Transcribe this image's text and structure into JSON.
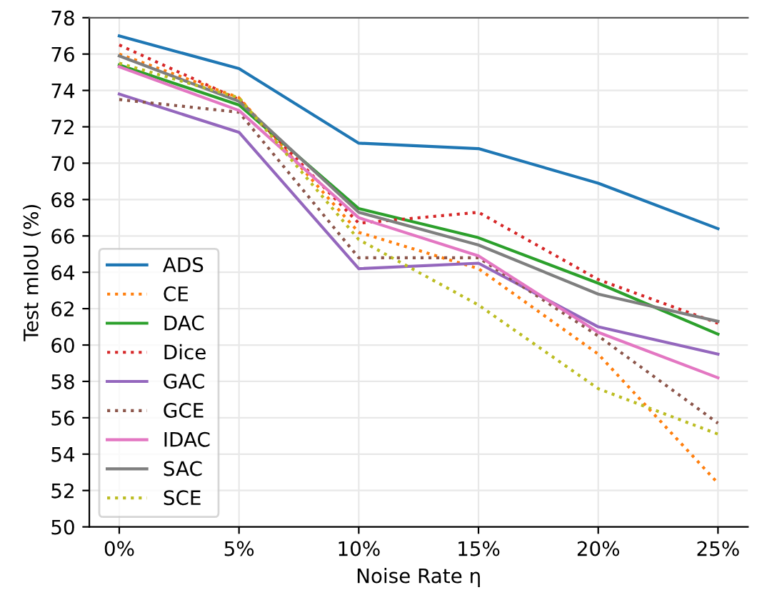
{
  "chart_data": {
    "type": "line",
    "xlabel": "Noise Rate η",
    "ylabel": "Test mIoU (%)",
    "categories": [
      "0%",
      "5%",
      "10%",
      "15%",
      "20%",
      "25%"
    ],
    "ylim": [
      50,
      78
    ],
    "yticks": [
      50,
      52,
      54,
      56,
      58,
      60,
      62,
      64,
      66,
      68,
      70,
      72,
      74,
      76,
      78
    ],
    "grid": true,
    "legend": "bottom left",
    "series": [
      {
        "name": "ADS",
        "color": "#1f77b4",
        "line_style": "solid",
        "values": [
          77.0,
          75.2,
          71.1,
          70.8,
          68.9,
          66.4
        ]
      },
      {
        "name": "CE",
        "color": "#ff7f0e",
        "line_style": "dotted",
        "values": [
          76.0,
          73.6,
          66.2,
          64.2,
          59.5,
          52.4
        ]
      },
      {
        "name": "DAC",
        "color": "#2ca02c",
        "line_style": "solid",
        "values": [
          75.4,
          73.2,
          67.5,
          65.9,
          63.4,
          60.6
        ]
      },
      {
        "name": "Dice",
        "color": "#d62728",
        "line_style": "dotted",
        "values": [
          76.5,
          73.5,
          66.7,
          67.3,
          63.6,
          61.2
        ]
      },
      {
        "name": "GAC",
        "color": "#9467bd",
        "line_style": "solid",
        "values": [
          73.8,
          71.7,
          64.2,
          64.5,
          61.0,
          59.5
        ]
      },
      {
        "name": "GCE",
        "color": "#8c564b",
        "line_style": "dotted",
        "values": [
          73.5,
          72.8,
          64.8,
          64.8,
          60.5,
          55.7
        ]
      },
      {
        "name": "IDAC",
        "color": "#e377c2",
        "line_style": "solid",
        "values": [
          75.3,
          72.9,
          67.0,
          64.9,
          60.7,
          58.2
        ]
      },
      {
        "name": "SAC",
        "color": "#7f7f7f",
        "line_style": "solid",
        "values": [
          75.9,
          73.4,
          67.3,
          65.5,
          62.8,
          61.3
        ]
      },
      {
        "name": "SCE",
        "color": "#bcbd22",
        "line_style": "dotted",
        "values": [
          75.5,
          73.6,
          65.8,
          62.2,
          57.6,
          55.1
        ]
      }
    ]
  }
}
